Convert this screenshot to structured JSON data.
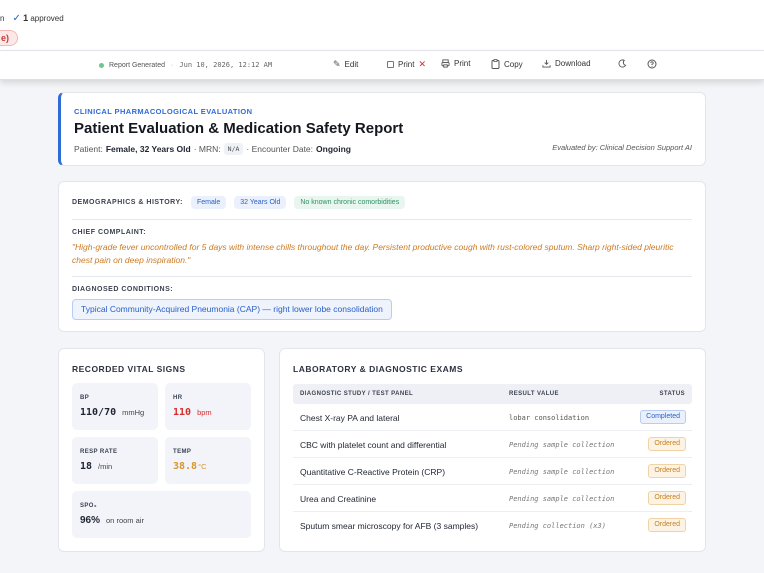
{
  "top": {
    "truncated_text": "n",
    "approved_count": "1",
    "approved_label": "approved",
    "pill_text": "e)"
  },
  "toolbar": {
    "status_text": "Report Generated",
    "timestamp": "Jun 10, 2026, 12:12 AM",
    "edit_label": "Edit",
    "print_toggle_label": "Print",
    "print_label": "Print",
    "copy_label": "Copy",
    "download_label": "Download",
    "status_color": "#6bc78f"
  },
  "header": {
    "eyebrow": "CLINICAL PHARMACOLOGICAL EVALUATION",
    "title": "Patient Evaluation & Medication Safety Report",
    "patient_prefix": "Patient:",
    "patient_value": "Female, 32 Years Old",
    "mrn_prefix": "· MRN:",
    "mrn_value": "N/A",
    "encounter_prefix": "· Encounter Date:",
    "encounter_value": "Ongoing",
    "evaluated_by": "Evaluated by: Clinical Decision Support AI",
    "accent_color": "#2f6bd9"
  },
  "history": {
    "demographics_label": "DEMOGRAPHICS & HISTORY:",
    "tags": [
      "Female",
      "32 Years Old",
      "No known chronic comorbidities"
    ],
    "chief_complaint_label": "CHIEF COMPLAINT:",
    "chief_complaint": "\"High-grade fever uncontrolled for 5 days with intense chills throughout the day. Persistent productive cough with rust-colored sputum. Sharp right-sided pleuritic chest pain on deep inspiration.\"",
    "diagnosed_label": "DIAGNOSED CONDITIONS:",
    "diagnosis": "Typical Community-Acquired Pneumonia (CAP) — right lower lobe consolidation"
  },
  "vitals": {
    "title": "RECORDED VITAL SIGNS",
    "items": [
      {
        "label": "BP",
        "value": "110/70",
        "unit": "mmHg"
      },
      {
        "label": "HR",
        "value": "110",
        "unit": "bpm"
      },
      {
        "label": "RESP RATE",
        "value": "18",
        "unit": "/min"
      },
      {
        "label": "TEMP",
        "value": "38.8",
        "unit": "°C"
      },
      {
        "label": "SPO₂",
        "value": "96%",
        "unit": "on room air"
      }
    ]
  },
  "labs": {
    "title": "LABORATORY & DIAGNOSTIC EXAMS",
    "columns": [
      "DIAGNOSTIC STUDY / TEST PANEL",
      "RESULT VALUE",
      "STATUS"
    ],
    "rows": [
      {
        "study": "Chest X-ray PA and lateral",
        "result": "lobar consolidation",
        "status": "Completed"
      },
      {
        "study": "CBC with platelet count and differential",
        "result": "Pending sample collection",
        "status": "Ordered"
      },
      {
        "study": "Quantitative C-Reactive Protein (CRP)",
        "result": "Pending sample collection",
        "status": "Ordered"
      },
      {
        "study": "Urea and Creatinine",
        "result": "Pending sample collection",
        "status": "Ordered"
      },
      {
        "study": "Sputum smear microscopy for AFB (3 samples)",
        "result": "Pending collection (x3)",
        "status": "Ordered"
      }
    ]
  }
}
